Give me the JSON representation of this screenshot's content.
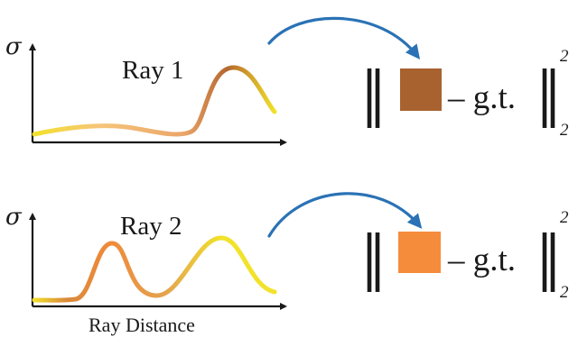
{
  "colors": {
    "axis": "#1a1a1a",
    "arrow_blue": "#2a72b5",
    "curve_yellow": "#f2e22a",
    "curve_pale_orange": "#f6c47a",
    "curve_brown": "#b5672f",
    "curve_orange": "#ef8a3a",
    "ray1_swatch": "#a8622f",
    "ray2_swatch": "#f58c3c"
  },
  "rays": [
    {
      "label": "Ray 1",
      "axis_symbol": "σ",
      "swatch_color": "#a8622f",
      "norm_expression": "– g.t.",
      "superscript": "2",
      "subscript": "2"
    },
    {
      "label": "Ray 2",
      "axis_symbol": "σ",
      "swatch_color": "#f58c3c",
      "norm_expression": "– g.t.",
      "superscript": "2",
      "subscript": "2"
    }
  ],
  "x_axis_label": "Ray Distance"
}
